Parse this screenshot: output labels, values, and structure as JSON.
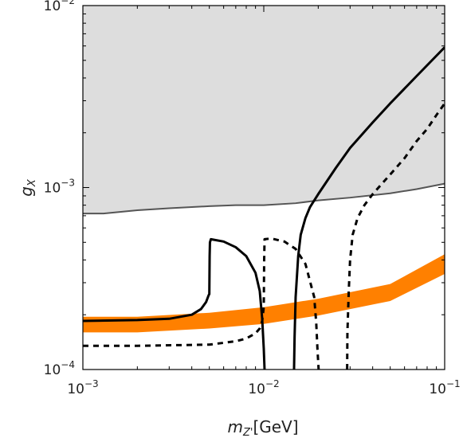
{
  "chart_data": {
    "type": "line",
    "xscale": "log",
    "yscale": "log",
    "xlim": [
      0.001,
      0.1
    ],
    "ylim": [
      0.0001,
      0.01
    ],
    "xlabel": {
      "base": "m",
      "sub": "Z'",
      "unit": "[GeV]"
    },
    "ylabel": {
      "base": "g",
      "sub": "X"
    },
    "x_ticks": [
      {
        "value": 0.001,
        "mantissa": "10",
        "exp": "−3"
      },
      {
        "value": 0.01,
        "mantissa": "10",
        "exp": "−2"
      },
      {
        "value": 0.1,
        "mantissa": "10",
        "exp": "−1"
      }
    ],
    "y_ticks": [
      {
        "value": 0.0001,
        "mantissa": "10",
        "exp": "−4"
      },
      {
        "value": 0.001,
        "mantissa": "10",
        "exp": "−3"
      },
      {
        "value": 0.01,
        "mantissa": "10",
        "exp": "−2"
      }
    ],
    "grid": false,
    "legend": "none",
    "series": [
      {
        "style": "excluded-region",
        "fill": "#dddddd",
        "stroke": "#555555",
        "boundary_x": [
          0.001,
          0.0013,
          0.002,
          0.003,
          0.005,
          0.007,
          0.01,
          0.015,
          0.02,
          0.03,
          0.05,
          0.07,
          0.1
        ],
        "boundary_y": [
          0.00072,
          0.00072,
          0.00075,
          0.00077,
          0.00079,
          0.0008,
          0.0008,
          0.00082,
          0.00085,
          0.00088,
          0.00093,
          0.00098,
          0.00105
        ]
      },
      {
        "style": "band",
        "fill": "#ff8000",
        "x": [
          0.001,
          0.002,
          0.005,
          0.01,
          0.02,
          0.05,
          0.1
        ],
        "lower": [
          0.00016,
          0.00016,
          0.000168,
          0.000178,
          0.000198,
          0.000238,
          0.000335
        ],
        "upper": [
          0.000195,
          0.000195,
          0.000205,
          0.00022,
          0.000245,
          0.000295,
          0.00043
        ]
      },
      {
        "style": "solid",
        "stroke": "#000000",
        "x": [
          0.001,
          0.002,
          0.003,
          0.004,
          0.0045,
          0.0048,
          0.00495,
          0.005,
          0.00502,
          0.00504,
          0.0051,
          0.006,
          0.007,
          0.008,
          0.009,
          0.0095,
          0.0098,
          0.01,
          0.0101
        ],
        "y": [
          0.000185,
          0.000187,
          0.00019,
          0.0002,
          0.000215,
          0.000235,
          0.000255,
          0.00026,
          0.00042,
          0.0005,
          0.00052,
          0.000505,
          0.00047,
          0.00042,
          0.00034,
          0.00027,
          0.00019,
          0.00013,
          0.0001
        ]
      },
      {
        "style": "solid",
        "stroke": "#000000",
        "x": [
          0.0147,
          0.0148,
          0.015,
          0.0155,
          0.016,
          0.017,
          0.018,
          0.02,
          0.025,
          0.03,
          0.04,
          0.05,
          0.07,
          0.1
        ],
        "y": [
          0.0001,
          0.00015,
          0.00025,
          0.00042,
          0.00055,
          0.00068,
          0.00078,
          0.00092,
          0.00128,
          0.00165,
          0.00228,
          0.0029,
          0.0041,
          0.0059
        ]
      },
      {
        "style": "dashed",
        "stroke": "#000000",
        "x": [
          0.001,
          0.002,
          0.005,
          0.007,
          0.008,
          0.009,
          0.0095,
          0.0098,
          0.01,
          0.01005,
          0.0101,
          0.011,
          0.013,
          0.015,
          0.017,
          0.019,
          0.0195,
          0.0198,
          0.0201
        ],
        "y": [
          0.000135,
          0.000135,
          0.000137,
          0.000143,
          0.000148,
          0.000158,
          0.000168,
          0.000185,
          0.00022,
          0.0004,
          0.00052,
          0.000525,
          0.000505,
          0.00046,
          0.00038,
          0.00025,
          0.00018,
          0.00013,
          0.0001
        ]
      },
      {
        "style": "dashed",
        "stroke": "#000000",
        "x": [
          0.0289,
          0.029,
          0.0295,
          0.03,
          0.031,
          0.033,
          0.036,
          0.04,
          0.05,
          0.06,
          0.07,
          0.08,
          0.09,
          0.1
        ],
        "y": [
          0.0001,
          0.00016,
          0.00027,
          0.0004,
          0.00055,
          0.00068,
          0.0008,
          0.00092,
          0.00118,
          0.00145,
          0.0018,
          0.0021,
          0.0025,
          0.0029
        ]
      }
    ]
  }
}
